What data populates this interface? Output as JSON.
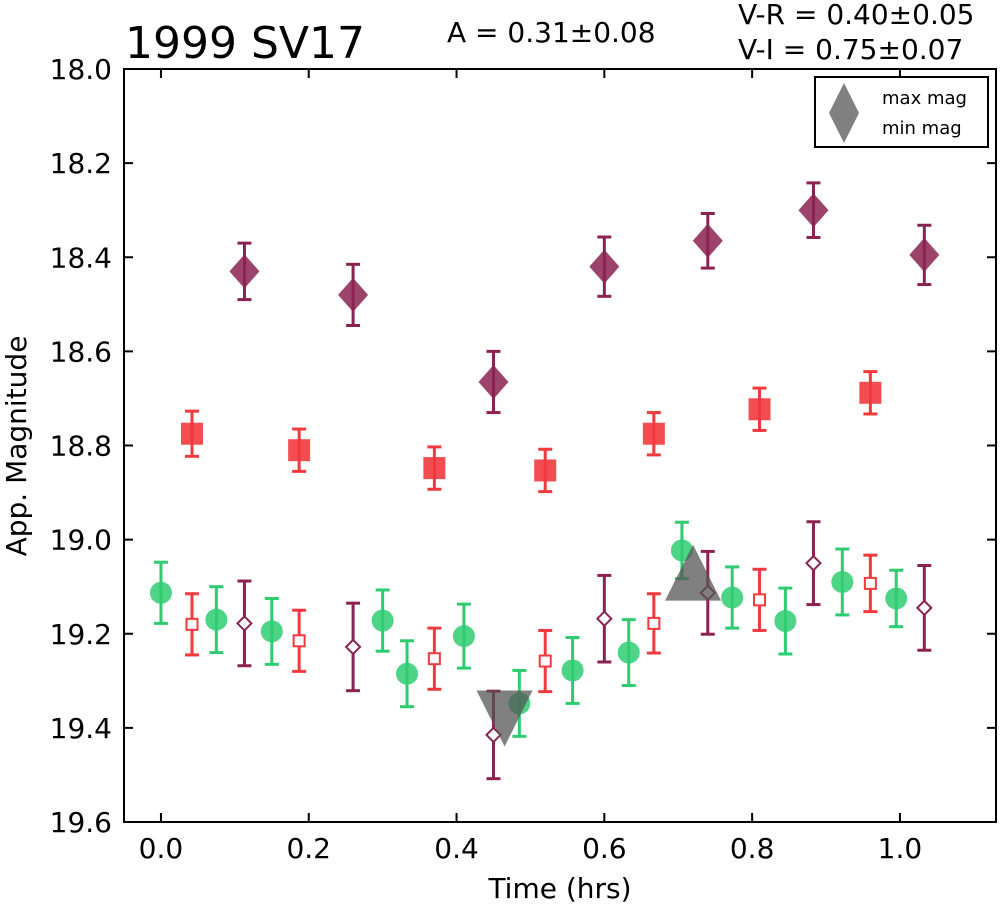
{
  "chart_data": {
    "type": "scatter",
    "title": "1999 SV17",
    "annotations": {
      "amplitude": "A  = 0.31±0.08",
      "v_r": "V-R = 0.40±0.05",
      "v_i": "V-I  = 0.75±0.07"
    },
    "xlabel": "Time (hrs)",
    "ylabel": "App. Magnitude",
    "xlim": [
      -0.05,
      1.13
    ],
    "ylim": [
      19.6,
      18.0
    ],
    "y_inverted": true,
    "xticks": [
      "0.0",
      "0.2",
      "0.4",
      "0.6",
      "0.8",
      "1.0"
    ],
    "yticks": [
      "18.0",
      "18.2",
      "18.4",
      "18.6",
      "18.8",
      "19.0",
      "19.2",
      "19.4",
      "19.6"
    ],
    "grid": false,
    "legend_position": "top-right",
    "legend": [
      {
        "label": "max mag",
        "marker": "triangle-up"
      },
      {
        "label": "min mag",
        "marker": "triangle-down"
      }
    ],
    "series": [
      {
        "marker": "diamond-filled",
        "color": "#8B2252",
        "points": [
          {
            "x": 0.113,
            "y": 18.43,
            "err": 0.06
          },
          {
            "x": 0.26,
            "y": 18.48,
            "err": 0.065
          },
          {
            "x": 0.45,
            "y": 18.665,
            "err": 0.065
          },
          {
            "x": 0.6,
            "y": 18.42,
            "err": 0.063
          },
          {
            "x": 0.74,
            "y": 18.365,
            "err": 0.058
          },
          {
            "x": 0.883,
            "y": 18.3,
            "err": 0.058
          },
          {
            "x": 1.033,
            "y": 18.395,
            "err": 0.063
          }
        ]
      },
      {
        "marker": "square-filled",
        "color": "#F2393E",
        "points": [
          {
            "x": 0.042,
            "y": 18.775,
            "err": 0.048
          },
          {
            "x": 0.187,
            "y": 18.81,
            "err": 0.045
          },
          {
            "x": 0.37,
            "y": 18.848,
            "err": 0.045
          },
          {
            "x": 0.52,
            "y": 18.853,
            "err": 0.045
          },
          {
            "x": 0.667,
            "y": 18.775,
            "err": 0.045
          },
          {
            "x": 0.81,
            "y": 18.723,
            "err": 0.045
          },
          {
            "x": 0.96,
            "y": 18.688,
            "err": 0.045
          }
        ]
      },
      {
        "marker": "circle-filled",
        "color": "#2ECC71",
        "points": [
          {
            "x": 0.0,
            "y": 19.113,
            "err": 0.065
          },
          {
            "x": 0.075,
            "y": 19.17,
            "err": 0.07
          },
          {
            "x": 0.15,
            "y": 19.195,
            "err": 0.07
          },
          {
            "x": 0.3,
            "y": 19.172,
            "err": 0.065
          },
          {
            "x": 0.333,
            "y": 19.285,
            "err": 0.07
          },
          {
            "x": 0.41,
            "y": 19.205,
            "err": 0.068
          },
          {
            "x": 0.485,
            "y": 19.348,
            "err": 0.07
          },
          {
            "x": 0.557,
            "y": 19.278,
            "err": 0.07
          },
          {
            "x": 0.633,
            "y": 19.24,
            "err": 0.07
          },
          {
            "x": 0.705,
            "y": 19.023,
            "err": 0.06
          },
          {
            "x": 0.773,
            "y": 19.123,
            "err": 0.065
          },
          {
            "x": 0.845,
            "y": 19.173,
            "err": 0.07
          },
          {
            "x": 0.922,
            "y": 19.09,
            "err": 0.07
          },
          {
            "x": 0.995,
            "y": 19.125,
            "err": 0.06
          }
        ]
      },
      {
        "marker": "square-open",
        "color": "#F2393E",
        "points": [
          {
            "x": 0.042,
            "y": 19.18,
            "err": 0.065
          },
          {
            "x": 0.187,
            "y": 19.215,
            "err": 0.065
          },
          {
            "x": 0.37,
            "y": 19.253,
            "err": 0.065
          },
          {
            "x": 0.52,
            "y": 19.258,
            "err": 0.065
          },
          {
            "x": 0.667,
            "y": 19.178,
            "err": 0.063
          },
          {
            "x": 0.81,
            "y": 19.128,
            "err": 0.065
          },
          {
            "x": 0.96,
            "y": 19.093,
            "err": 0.06
          }
        ]
      },
      {
        "marker": "diamond-open",
        "color": "#8B2252",
        "points": [
          {
            "x": 0.113,
            "y": 19.178,
            "err": 0.09
          },
          {
            "x": 0.26,
            "y": 19.228,
            "err": 0.093
          },
          {
            "x": 0.45,
            "y": 19.415,
            "err": 0.093
          },
          {
            "x": 0.6,
            "y": 19.168,
            "err": 0.092
          },
          {
            "x": 0.74,
            "y": 19.113,
            "err": 0.088
          },
          {
            "x": 0.883,
            "y": 19.05,
            "err": 0.088
          },
          {
            "x": 1.033,
            "y": 19.145,
            "err": 0.09
          }
        ]
      }
    ],
    "extrema_markers": [
      {
        "label": "max mag",
        "marker": "triangle-up",
        "color": "#555555",
        "x": 0.72,
        "y": 19.07
      },
      {
        "label": "min mag",
        "marker": "triangle-down",
        "color": "#555555",
        "x": 0.465,
        "y": 19.38
      }
    ]
  }
}
